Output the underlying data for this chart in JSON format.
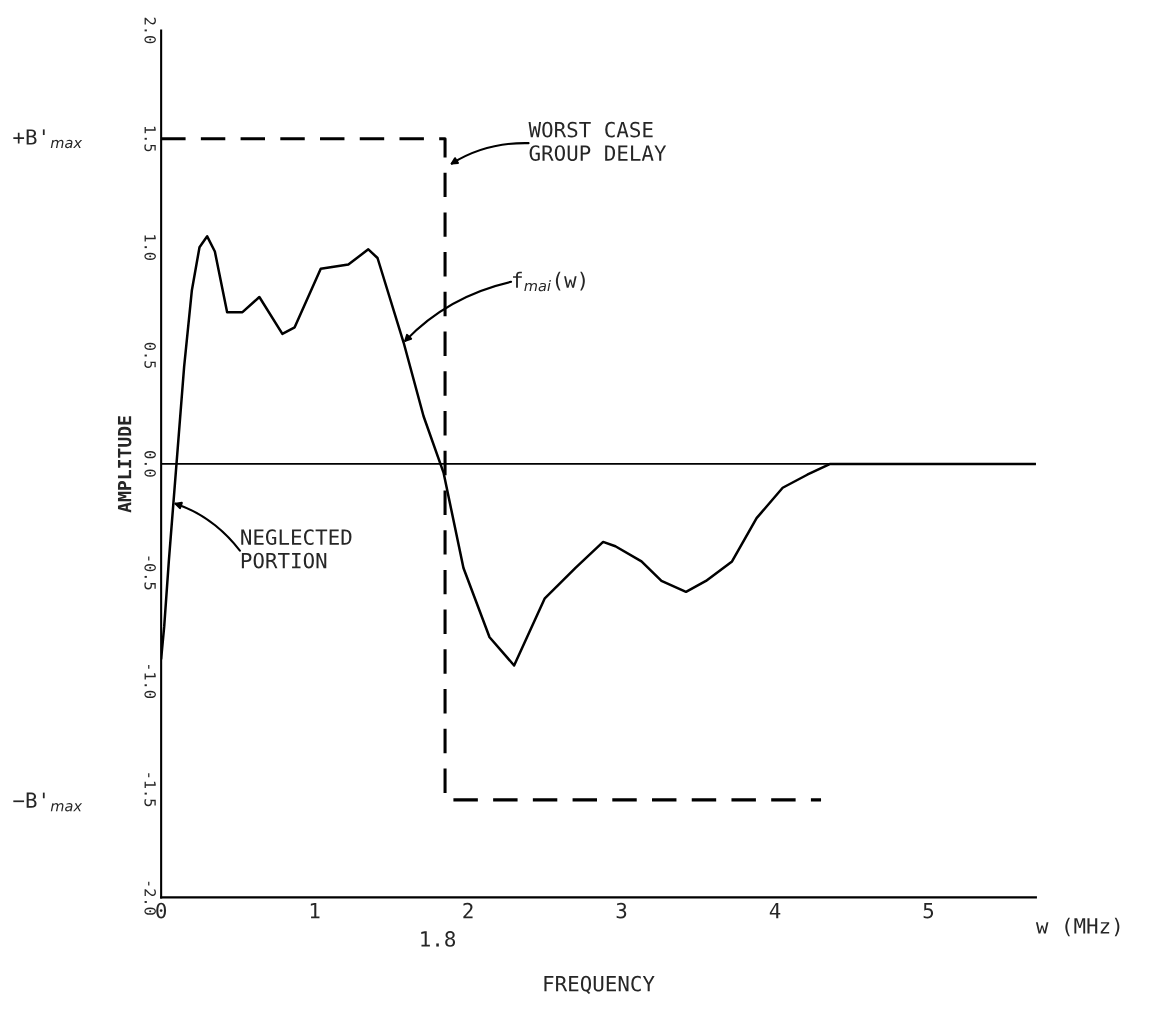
{
  "chart_data": {
    "type": "line",
    "xlabel": "FREQUENCY",
    "ylabel": "AMPLITUDE",
    "xlim": [
      0,
      5.7
    ],
    "ylim": [
      -2.0,
      2.0
    ],
    "xticks": [
      0,
      1,
      2,
      3,
      4,
      5
    ],
    "yticks": [
      {
        "value": -2.0,
        "label": "-2.0"
      },
      {
        "value": -1.5,
        "label": "-1.5"
      },
      {
        "value": -1.0,
        "label": "-1.0"
      },
      {
        "value": -0.5,
        "label": "-0.5"
      },
      {
        "value": 0.0,
        "label": "0.0"
      },
      {
        "value": 0.5,
        "label": "0.5"
      },
      {
        "value": 1.0,
        "label": "1.0"
      },
      {
        "value": 1.5,
        "label": "1.5"
      },
      {
        "value": 2.0,
        "label": "2.0"
      }
    ],
    "grid": false,
    "legend": false,
    "ref_lines": [
      {
        "axis": "y",
        "value": 0,
        "color": "#000000",
        "line_style": "solid"
      }
    ],
    "series": [
      {
        "color": "#000000",
        "line_style": "solid",
        "x": [
          0,
          0.02,
          0.05,
          0.1,
          0.15,
          0.2,
          0.25,
          0.3,
          0.35,
          0.43,
          0.53,
          0.64,
          0.79,
          0.87,
          1.04,
          1.22,
          1.35,
          1.41,
          1.58,
          1.71,
          1.84,
          1.97,
          2.14,
          2.3,
          2.5,
          2.7,
          2.88,
          2.96,
          3.13,
          3.26,
          3.42,
          3.55,
          3.72,
          3.88,
          4.05,
          4.21,
          4.36,
          4.47,
          5.7
        ],
        "values": [
          -0.9,
          -0.75,
          -0.45,
          0.0,
          0.45,
          0.8,
          1.0,
          1.05,
          0.98,
          0.7,
          0.7,
          0.77,
          0.6,
          0.63,
          0.9,
          0.92,
          0.99,
          0.95,
          0.56,
          0.22,
          -0.04,
          -0.48,
          -0.8,
          -0.93,
          -0.62,
          -0.48,
          -0.36,
          -0.38,
          -0.45,
          -0.54,
          -0.59,
          -0.54,
          -0.45,
          -0.25,
          -0.11,
          -0.05,
          0.0,
          0.0,
          0.0
        ]
      },
      {
        "color": "#000000",
        "line_style": "dashed",
        "x": [
          0,
          1.85,
          1.85,
          1.85,
          4.3
        ],
        "values": [
          1.5,
          1.5,
          -1.55,
          -1.55,
          -1.55
        ]
      }
    ],
    "annotations": [
      "WORST CASE\nGROUP DELAY",
      {
        "text": "f$_{mai}$(w)",
        "x": 1.58,
        "y": 0.56
      },
      {
        "text": "NEGLECTED\nPORTION",
        "x": 0.08,
        "y": -0.18
      },
      "+B'$_{max}$",
      "−B'$_{max}$",
      "1.8",
      "w (MHz)"
    ]
  }
}
